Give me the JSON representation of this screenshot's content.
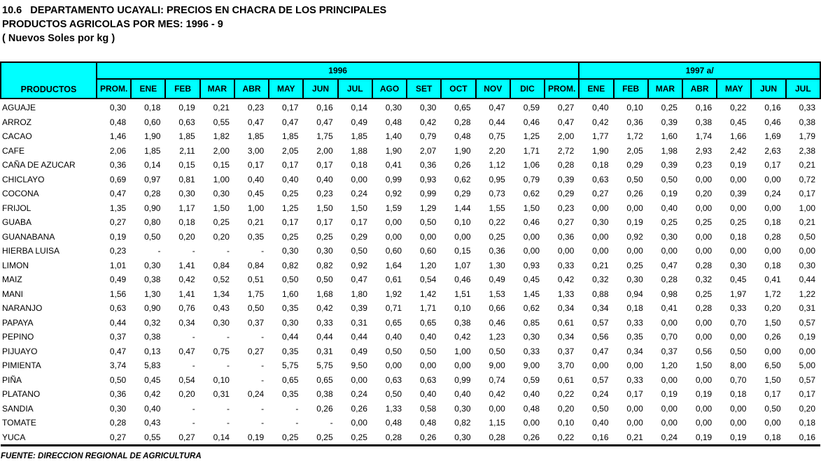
{
  "page": {
    "title_line1": "10.6   DEPARTAMENTO UCAYALI: PRECIOS EN CHACRA DE LOS PRINCIPALES",
    "title_line2": "PRODUCTOS AGRICOLAS POR MES: 1996 - 9",
    "title_line3": "( Nuevos Soles por kg )",
    "source_note": "FUENTE: DIRECCION REGIONAL DE AGRICULTURA"
  },
  "colors": {
    "header_bg": "#00FFFF",
    "border": "#000000",
    "text": "#000000"
  },
  "table": {
    "products_header": "PRODUCTOS",
    "group_1996": "1996",
    "group_1997": "1997 a/",
    "months_1996": [
      "PROM.",
      "ENE",
      "FEB",
      "MAR",
      "ABR",
      "MAY",
      "JUN",
      "JUL",
      "AGO",
      "SET",
      "OCT",
      "NOV",
      "DIC",
      "PROM."
    ],
    "months_1997": [
      "ENE",
      "FEB",
      "MAR",
      "ABR",
      "MAY",
      "JUN",
      "JUL"
    ],
    "rows": [
      {
        "product": "AGUAJE",
        "values_1996": [
          "0,30",
          "0,18",
          "0,19",
          "0,21",
          "0,23",
          "0,17",
          "0,16",
          "0,14",
          "0,30",
          "0,30",
          "0,65",
          "0,47",
          "0,59",
          "0,27"
        ],
        "values_1997": [
          "0,40",
          "0,10",
          "0,25",
          "0,16",
          "0,22",
          "0,16",
          "0,33"
        ]
      },
      {
        "product": "ARROZ",
        "values_1996": [
          "0,48",
          "0,60",
          "0,63",
          "0,55",
          "0,47",
          "0,47",
          "0,47",
          "0,49",
          "0,48",
          "0,42",
          "0,28",
          "0,44",
          "0,46",
          "0,47"
        ],
        "values_1997": [
          "0,42",
          "0,36",
          "0,39",
          "0,38",
          "0,45",
          "0,46",
          "0,38"
        ]
      },
      {
        "product": "CACAO",
        "values_1996": [
          "1,46",
          "1,90",
          "1,85",
          "1,82",
          "1,85",
          "1,85",
          "1,75",
          "1,85",
          "1,40",
          "0,79",
          "0,48",
          "0,75",
          "1,25",
          "2,00"
        ],
        "values_1997": [
          "1,77",
          "1,72",
          "1,60",
          "1,74",
          "1,66",
          "1,69",
          "1,79"
        ]
      },
      {
        "product": "CAFE",
        "values_1996": [
          "2,06",
          "1,85",
          "2,11",
          "2,00",
          "3,00",
          "2,05",
          "2,00",
          "1,88",
          "1,90",
          "2,07",
          "1,90",
          "2,20",
          "1,71",
          "2,72"
        ],
        "values_1997": [
          "1,90",
          "2,05",
          "1,98",
          "2,93",
          "2,42",
          "2,63",
          "2,38"
        ]
      },
      {
        "product": "CAÑA DE AZUCAR",
        "values_1996": [
          "0,36",
          "0,14",
          "0,15",
          "0,15",
          "0,17",
          "0,17",
          "0,17",
          "0,18",
          "0,41",
          "0,36",
          "0,26",
          "1,12",
          "1,06",
          "0,28"
        ],
        "values_1997": [
          "0,18",
          "0,29",
          "0,39",
          "0,23",
          "0,19",
          "0,17",
          "0,21"
        ]
      },
      {
        "product": "CHICLAYO",
        "values_1996": [
          "0,69",
          "0,97",
          "0,81",
          "1,00",
          "0,40",
          "0,40",
          "0,40",
          "0,00",
          "0,99",
          "0,93",
          "0,62",
          "0,95",
          "0,79",
          "0,39"
        ],
        "values_1997": [
          "0,63",
          "0,50",
          "0,50",
          "0,00",
          "0,00",
          "0,00",
          "0,72"
        ]
      },
      {
        "product": "COCONA",
        "values_1996": [
          "0,47",
          "0,28",
          "0,30",
          "0,30",
          "0,45",
          "0,25",
          "0,23",
          "0,24",
          "0,92",
          "0,99",
          "0,29",
          "0,73",
          "0,62",
          "0,29"
        ],
        "values_1997": [
          "0,27",
          "0,26",
          "0,19",
          "0,20",
          "0,39",
          "0,24",
          "0,17"
        ]
      },
      {
        "product": "FRIJOL",
        "values_1996": [
          "1,35",
          "0,90",
          "1,17",
          "1,50",
          "1,00",
          "1,25",
          "1,50",
          "1,50",
          "1,59",
          "1,29",
          "1,44",
          "1,55",
          "1,50",
          "0,23"
        ],
        "values_1997": [
          "0,00",
          "0,00",
          "0,40",
          "0,00",
          "0,00",
          "0,00",
          "1,00"
        ]
      },
      {
        "product": "GUABA",
        "values_1996": [
          "0,27",
          "0,80",
          "0,18",
          "0,25",
          "0,21",
          "0,17",
          "0,17",
          "0,17",
          "0,00",
          "0,50",
          "0,10",
          "0,22",
          "0,46",
          "0,27"
        ],
        "values_1997": [
          "0,30",
          "0,19",
          "0,25",
          "0,25",
          "0,25",
          "0,18",
          "0,21"
        ]
      },
      {
        "product": "GUANABANA",
        "values_1996": [
          "0,19",
          "0,50",
          "0,20",
          "0,20",
          "0,35",
          "0,25",
          "0,25",
          "0,29",
          "0,00",
          "0,00",
          "0,00",
          "0,25",
          "0,00",
          "0,36"
        ],
        "values_1997": [
          "0,00",
          "0,92",
          "0,30",
          "0,00",
          "0,18",
          "0,28",
          "0,50"
        ]
      },
      {
        "product": "HIERBA LUISA",
        "values_1996": [
          "0,23",
          "-",
          "-",
          "-",
          "-",
          "0,30",
          "0,30",
          "0,50",
          "0,60",
          "0,60",
          "0,15",
          "0,36",
          "0,00",
          "0,00"
        ],
        "values_1997": [
          "0,00",
          "0,00",
          "0,00",
          "0,00",
          "0,00",
          "0,00",
          "0,00"
        ]
      },
      {
        "product": "LIMON",
        "values_1996": [
          "1,01",
          "0,30",
          "1,41",
          "0,84",
          "0,84",
          "0,82",
          "0,82",
          "0,92",
          "1,64",
          "1,20",
          "1,07",
          "1,30",
          "0,93",
          "0,33"
        ],
        "values_1997": [
          "0,21",
          "0,25",
          "0,47",
          "0,28",
          "0,30",
          "0,18",
          "0,30"
        ]
      },
      {
        "product": "MAIZ",
        "values_1996": [
          "0,49",
          "0,38",
          "0,42",
          "0,52",
          "0,51",
          "0,50",
          "0,50",
          "0,47",
          "0,61",
          "0,54",
          "0,46",
          "0,49",
          "0,45",
          "0,42"
        ],
        "values_1997": [
          "0,32",
          "0,30",
          "0,28",
          "0,32",
          "0,45",
          "0,41",
          "0,44"
        ]
      },
      {
        "product": "MANI",
        "values_1996": [
          "1,56",
          "1,30",
          "1,41",
          "1,34",
          "1,75",
          "1,60",
          "1,68",
          "1,80",
          "1,92",
          "1,42",
          "1,51",
          "1,53",
          "1,45",
          "1,33"
        ],
        "values_1997": [
          "0,88",
          "0,94",
          "0,98",
          "0,25",
          "1,97",
          "1,72",
          "1,22"
        ]
      },
      {
        "product": "NARANJO",
        "values_1996": [
          "0,63",
          "0,90",
          "0,76",
          "0,43",
          "0,50",
          "0,35",
          "0,42",
          "0,39",
          "0,71",
          "1,71",
          "0,10",
          "0,66",
          "0,62",
          "0,34"
        ],
        "values_1997": [
          "0,34",
          "0,18",
          "0,41",
          "0,28",
          "0,33",
          "0,20",
          "0,31"
        ]
      },
      {
        "product": "PAPAYA",
        "values_1996": [
          "0,44",
          "0,32",
          "0,34",
          "0,30",
          "0,37",
          "0,30",
          "0,33",
          "0,31",
          "0,65",
          "0,65",
          "0,38",
          "0,46",
          "0,85",
          "0,61"
        ],
        "values_1997": [
          "0,57",
          "0,33",
          "0,00",
          "0,00",
          "0,70",
          "1,50",
          "0,57"
        ]
      },
      {
        "product": "PEPINO",
        "values_1996": [
          "0,37",
          "0,38",
          "-",
          "-",
          "-",
          "0,44",
          "0,44",
          "0,44",
          "0,40",
          "0,40",
          "0,42",
          "1,23",
          "0,30",
          "0,34"
        ],
        "values_1997": [
          "0,56",
          "0,35",
          "0,70",
          "0,00",
          "0,00",
          "0,26",
          "0,19"
        ]
      },
      {
        "product": "PIJUAYO",
        "values_1996": [
          "0,47",
          "0,13",
          "0,47",
          "0,75",
          "0,27",
          "0,35",
          "0,31",
          "0,49",
          "0,50",
          "0,50",
          "1,00",
          "0,50",
          "0,33",
          "0,37"
        ],
        "values_1997": [
          "0,47",
          "0,34",
          "0,37",
          "0,56",
          "0,50",
          "0,00",
          "0,00"
        ]
      },
      {
        "product": "PIMIENTA",
        "values_1996": [
          "3,74",
          "5,83",
          "-",
          "-",
          "-",
          "5,75",
          "5,75",
          "9,50",
          "0,00",
          "0,00",
          "0,00",
          "9,00",
          "9,00",
          "3,70"
        ],
        "values_1997": [
          "0,00",
          "0,00",
          "1,20",
          "1,50",
          "8,00",
          "6,50",
          "5,00"
        ]
      },
      {
        "product": "PIÑA",
        "values_1996": [
          "0,50",
          "0,45",
          "0,54",
          "0,10",
          "-",
          "0,65",
          "0,65",
          "0,00",
          "0,63",
          "0,63",
          "0,99",
          "0,74",
          "0,59",
          "0,61"
        ],
        "values_1997": [
          "0,57",
          "0,33",
          "0,00",
          "0,00",
          "0,70",
          "1,50",
          "0,57"
        ]
      },
      {
        "product": "PLATANO",
        "values_1996": [
          "0,36",
          "0,42",
          "0,20",
          "0,31",
          "0,24",
          "0,35",
          "0,38",
          "0,24",
          "0,50",
          "0,40",
          "0,40",
          "0,42",
          "0,40",
          "0,22"
        ],
        "values_1997": [
          "0,24",
          "0,17",
          "0,19",
          "0,19",
          "0,18",
          "0,17",
          "0,17"
        ]
      },
      {
        "product": "SANDIA",
        "values_1996": [
          "0,30",
          "0,40",
          "-",
          "-",
          "-",
          "-",
          "0,26",
          "0,26",
          "1,33",
          "0,58",
          "0,30",
          "0,00",
          "0,48",
          "0,20"
        ],
        "values_1997": [
          "0,50",
          "0,00",
          "0,00",
          "0,00",
          "0,00",
          "0,50",
          "0,20"
        ]
      },
      {
        "product": "TOMATE",
        "values_1996": [
          "0,28",
          "0,43",
          "-",
          "-",
          "-",
          "-",
          "-",
          "0,00",
          "0,48",
          "0,48",
          "0,82",
          "1,15",
          "0,00",
          "0,10"
        ],
        "values_1997": [
          "0,40",
          "0,00",
          "0,00",
          "0,00",
          "0,00",
          "0,00",
          "0,18"
        ]
      },
      {
        "product": "YUCA",
        "values_1996": [
          "0,27",
          "0,55",
          "0,27",
          "0,14",
          "0,19",
          "0,25",
          "0,25",
          "0,25",
          "0,28",
          "0,26",
          "0,30",
          "0,28",
          "0,26",
          "0,22"
        ],
        "values_1997": [
          "0,16",
          "0,21",
          "0,24",
          "0,19",
          "0,19",
          "0,18",
          "0,16"
        ]
      }
    ]
  }
}
